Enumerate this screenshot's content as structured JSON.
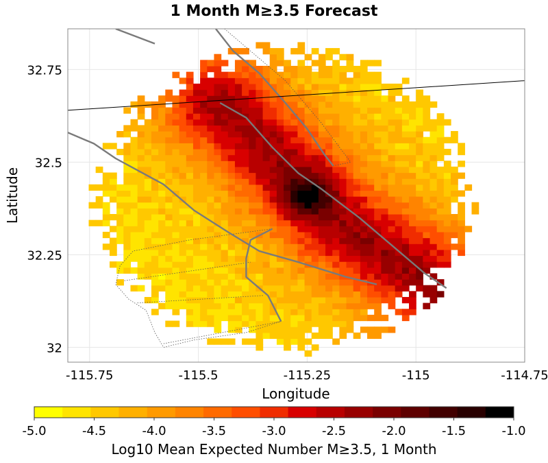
{
  "chart_data": {
    "type": "heatmap",
    "title": "1 Month M≥3.5 Forecast",
    "xlabel": "Longitude",
    "ylabel": "Latitude",
    "xlim": [
      -115.8,
      -114.75
    ],
    "ylim": [
      31.96,
      32.86
    ],
    "x_ticks": [
      -115.75,
      -115.5,
      -115.25,
      -115,
      -114.75
    ],
    "x_tick_labels": [
      "-115.75",
      "-115.5",
      "-115.25",
      "-115",
      "-114.75"
    ],
    "y_ticks": [
      32,
      32.25,
      32.5,
      32.75
    ],
    "y_tick_labels": [
      "32",
      "32.25",
      "32.5",
      "32.75"
    ],
    "grid": true,
    "cell_size_deg": 0.016,
    "colorbar": {
      "label": "Log10 Mean Expected Number M≥3.5, 1 Month",
      "range": [
        -5.0,
        -1.0
      ],
      "tick_values": [
        -5.0,
        -4.5,
        -4.0,
        -3.5,
        -3.0,
        -2.5,
        -2.0,
        -1.5,
        -1.0
      ],
      "tick_labels": [
        "-5.0",
        "-4.5",
        "-4.0",
        "-3.5",
        "-3.0",
        "-2.5",
        "-2.0",
        "-1.5",
        "-1.0"
      ],
      "colors": [
        "#ffff00",
        "#ffe400",
        "#ffc800",
        "#ffb000",
        "#ff9a00",
        "#ff8400",
        "#ff6a00",
        "#ff4e00",
        "#f02c00",
        "#d80000",
        "#b80000",
        "#980000",
        "#7a0000",
        "#5e0000",
        "#420000",
        "#280000",
        "#000000"
      ]
    },
    "model": {
      "region_center": [
        -115.3,
        32.4
      ],
      "region_radius_deg": [
        0.45,
        0.42
      ],
      "hotspot": [
        -115.25,
        32.41
      ],
      "fault_trend": [
        [
          -115.45,
          32.66
        ],
        [
          -115.31,
          32.5
        ],
        [
          -115.17,
          32.33
        ],
        [
          -115.02,
          32.22
        ],
        [
          -114.95,
          32.15
        ]
      ]
    },
    "overlays": {
      "faults_gray": [
        [
          [
            -115.69,
            32.86
          ],
          [
            -115.6,
            32.82
          ]
        ],
        [
          [
            -115.45,
            32.66
          ],
          [
            -115.39,
            32.62
          ],
          [
            -115.33,
            32.54
          ],
          [
            -115.27,
            32.47
          ],
          [
            -115.22,
            32.43
          ],
          [
            -115.13,
            32.35
          ],
          [
            -115.06,
            32.28
          ],
          [
            -114.98,
            32.2
          ],
          [
            -114.93,
            32.16
          ]
        ],
        [
          [
            -115.46,
            32.86
          ],
          [
            -115.42,
            32.8
          ],
          [
            -115.36,
            32.74
          ],
          [
            -115.3,
            32.66
          ],
          [
            -115.25,
            32.59
          ],
          [
            -115.21,
            32.52
          ],
          [
            -115.19,
            32.49
          ]
        ],
        [
          [
            -115.8,
            32.58
          ],
          [
            -115.74,
            32.55
          ],
          [
            -115.69,
            32.51
          ],
          [
            -115.58,
            32.44
          ],
          [
            -115.51,
            32.37
          ],
          [
            -115.43,
            32.31
          ],
          [
            -115.36,
            32.26
          ],
          [
            -115.27,
            32.23
          ],
          [
            -115.16,
            32.19
          ],
          [
            -115.09,
            32.17
          ]
        ],
        [
          [
            -115.33,
            32.32
          ],
          [
            -115.38,
            32.29
          ],
          [
            -115.39,
            32.24
          ],
          [
            -115.39,
            32.19
          ],
          [
            -115.34,
            32.14
          ],
          [
            -115.31,
            32.07
          ]
        ]
      ],
      "border_black": [
        [
          -115.8,
          32.64
        ],
        [
          -114.75,
          32.72
        ],
        [
          -114.74,
          32.74
        ]
      ],
      "dotted_outline": [
        [
          [
            -115.44,
            32.86
          ],
          [
            -115.3,
            32.72
          ],
          [
            -115.22,
            32.61
          ],
          [
            -115.15,
            32.5
          ],
          [
            -115.19,
            32.49
          ]
        ],
        [
          [
            -115.33,
            32.32
          ],
          [
            -115.52,
            32.29
          ],
          [
            -115.65,
            32.26
          ],
          [
            -115.68,
            32.22
          ],
          [
            -115.69,
            32.17
          ],
          [
            -115.66,
            32.13
          ],
          [
            -115.62,
            32.1
          ],
          [
            -115.6,
            32.04
          ],
          [
            -115.58,
            32.0
          ],
          [
            -115.51,
            32.02
          ],
          [
            -115.39,
            32.04
          ],
          [
            -115.31,
            32.07
          ]
        ],
        [
          [
            -115.67,
            32.18
          ],
          [
            -115.38,
            32.23
          ]
        ],
        [
          [
            -115.64,
            32.12
          ],
          [
            -115.35,
            32.14
          ]
        ],
        [
          [
            -115.58,
            32.01
          ],
          [
            -115.31,
            32.07
          ]
        ]
      ]
    }
  }
}
